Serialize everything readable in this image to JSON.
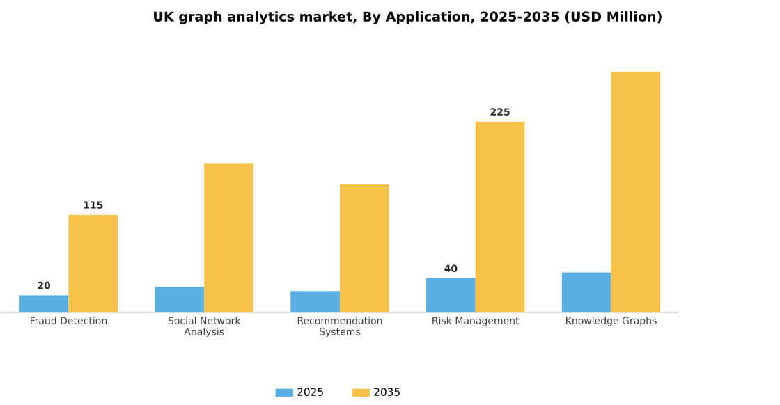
{
  "chart_data": {
    "type": "bar",
    "title": "UK graph analytics market, By Application, 2025-2035 (USD Million)",
    "categories": [
      "Fraud Detection",
      "Social Network Analysis",
      "Recommendation Systems",
      "Risk Management",
      "Knowledge Graphs"
    ],
    "series": [
      {
        "name": "2025",
        "color": "#5aafe3",
        "values": [
          20,
          30,
          25,
          40,
          47
        ],
        "value_labels": [
          "20",
          null,
          null,
          "40",
          null
        ]
      },
      {
        "name": "2035",
        "color": "#f7c24a",
        "values": [
          115,
          176,
          151,
          225,
          284
        ],
        "value_labels": [
          "115",
          null,
          null,
          "225",
          null
        ]
      }
    ],
    "legend": "bottom",
    "grid": false
  }
}
